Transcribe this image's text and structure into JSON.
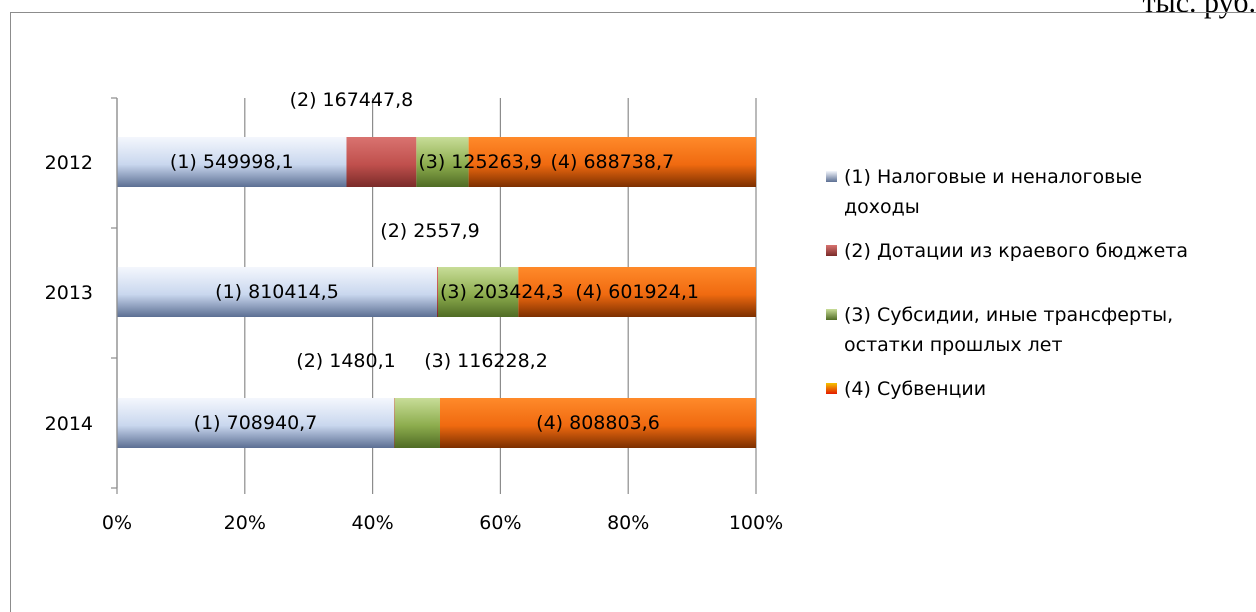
{
  "unit_label": "тыс. руб.",
  "colors": {
    "s1": "#c9d7ee",
    "s2": "#c0504d",
    "s3": "#8dad4e",
    "s4": "#f06a10"
  },
  "chart_data": {
    "type": "bar",
    "orientation": "horizontal",
    "stacked": "percent",
    "categories": [
      "2012",
      "2013",
      "2014"
    ],
    "series": [
      {
        "name": "(1) Налоговые и неналоговые доходы",
        "values": [
          549998.1,
          810414.5,
          708940.7
        ],
        "labels": [
          "(1) 549998,1",
          "(1) 810414,5",
          "(1) 708940,7"
        ]
      },
      {
        "name": "(2) Дотации из краевого бюджета",
        "values": [
          167447.8,
          2557.9,
          1480.1
        ],
        "labels": [
          "(2) 167447,8",
          "(2) 2557,9",
          "(2) 1480,1"
        ]
      },
      {
        "name": "(3) Субсидии, иные трансферты, остатки прошлых лет",
        "values": [
          125263.9,
          203424.3,
          116228.2
        ],
        "labels": [
          "(3) 125263,9",
          "(3) 203424,3",
          "(3) 116228,2"
        ]
      },
      {
        "name": "(4) Субвенции",
        "values": [
          688738.7,
          601924.1,
          808803.6
        ],
        "labels": [
          "(4) 688738,7",
          "(4) 601924,1",
          "(4) 808803,6"
        ]
      }
    ],
    "xlim": [
      0,
      100
    ],
    "xticks": [
      "0%",
      "20%",
      "40%",
      "60%",
      "80%",
      "100%"
    ],
    "grid": true,
    "legend": "right"
  },
  "legend": {
    "items": [
      {
        "line1": "(1) Налоговые и неналоговые",
        "line2": "доходы"
      },
      {
        "line1": "(2) Дотации из краевого бюджета",
        "line2": ""
      },
      {
        "line1": "(3) Субсидии, иные трансферты,",
        "line2": "остатки прошлых лет"
      },
      {
        "line1": "(4) Субвенции",
        "line2": ""
      }
    ]
  }
}
